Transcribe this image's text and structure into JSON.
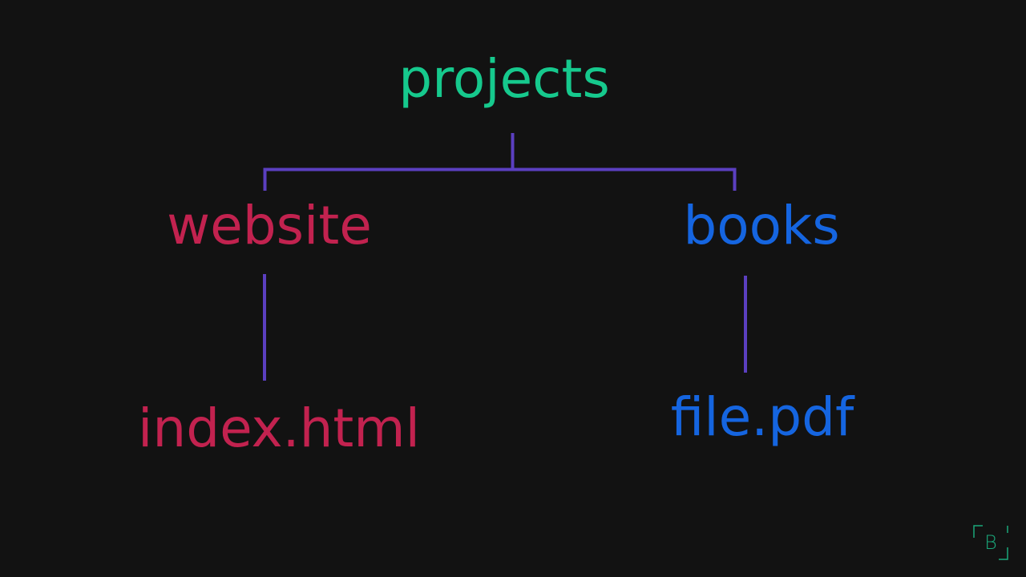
{
  "colors": {
    "background": "#121212",
    "root": "#16c98d",
    "website_branch": "#c2224f",
    "books_branch": "#1565e0",
    "connector": "#5b3fc0",
    "logo": "#1aa77a"
  },
  "tree": {
    "root": {
      "label": "projects"
    },
    "children": [
      {
        "label": "website",
        "children": [
          {
            "label": "index.html"
          }
        ]
      },
      {
        "label": "books",
        "children": [
          {
            "label": "file.pdf"
          }
        ]
      }
    ]
  },
  "logo": {
    "letter": "B"
  }
}
